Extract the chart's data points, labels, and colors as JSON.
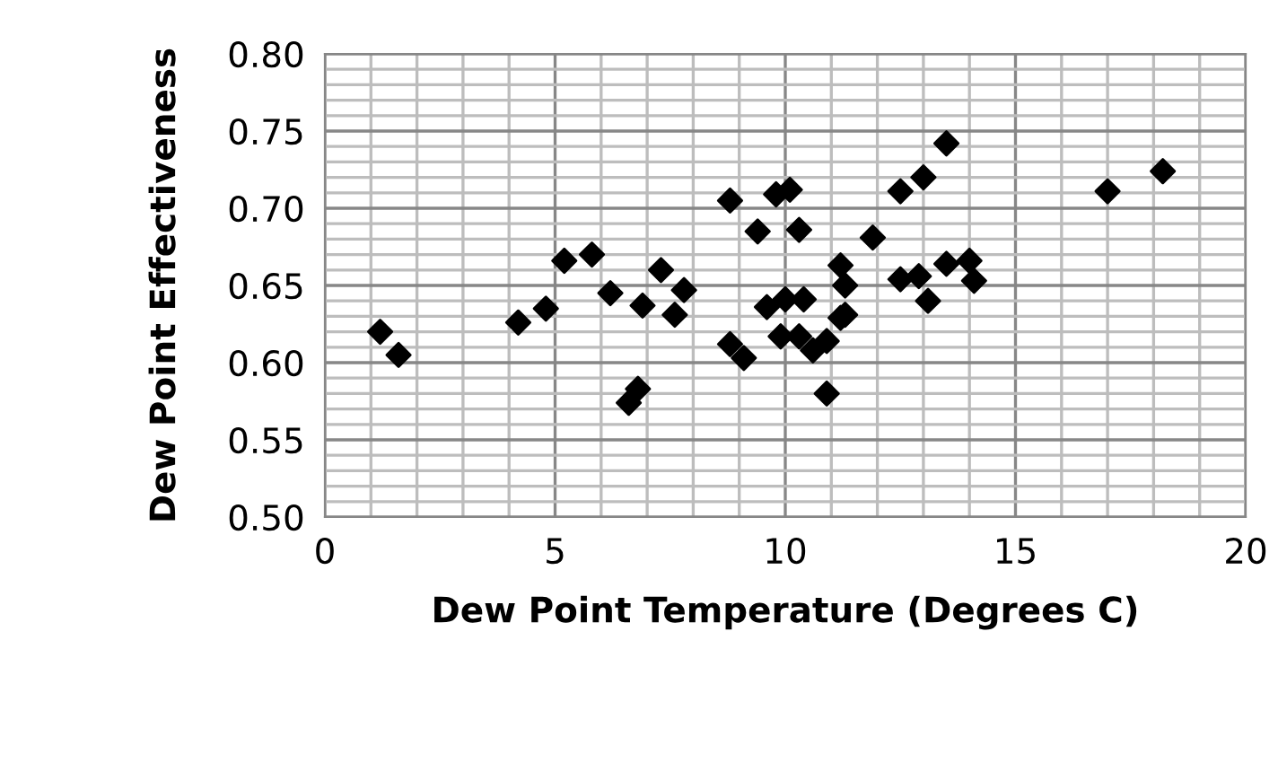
{
  "chart_data": {
    "type": "scatter",
    "xlabel": "Dew Point Temperature (Degrees C)",
    "ylabel": "Dew Point Effectiveness",
    "xlim": [
      0,
      20
    ],
    "xticks": [
      0,
      5,
      10,
      15,
      20
    ],
    "ylim": [
      0.5,
      0.8
    ],
    "yticks": [
      {
        "value": 0.5,
        "label": "0.50"
      },
      {
        "value": 0.55,
        "label": "0.55"
      },
      {
        "value": 0.6,
        "label": "0.60"
      },
      {
        "value": 0.65,
        "label": "0.65"
      },
      {
        "value": 0.7,
        "label": "0.70"
      },
      {
        "value": 0.75,
        "label": "0.75"
      },
      {
        "value": 0.8,
        "label": "0.80"
      }
    ],
    "grid": true,
    "marker": "diamond",
    "series": [
      {
        "color": "#000000",
        "x": [
          1.2,
          1.6,
          4.2,
          4.8,
          5.2,
          5.8,
          6.2,
          6.6,
          6.8,
          6.9,
          7.3,
          7.6,
          7.8,
          8.8,
          8.8,
          9.1,
          9.4,
          9.6,
          9.8,
          9.9,
          10.0,
          10.1,
          10.3,
          10.3,
          10.4,
          10.6,
          10.9,
          10.9,
          11.2,
          11.2,
          11.3,
          11.3,
          11.9,
          12.5,
          12.5,
          12.9,
          13.0,
          13.1,
          13.5,
          13.5,
          14.0,
          14.1,
          17.0,
          18.2
        ],
        "values": [
          0.62,
          0.605,
          0.626,
          0.635,
          0.666,
          0.67,
          0.645,
          0.574,
          0.583,
          0.637,
          0.66,
          0.631,
          0.647,
          0.705,
          0.612,
          0.603,
          0.685,
          0.636,
          0.709,
          0.617,
          0.641,
          0.712,
          0.686,
          0.617,
          0.641,
          0.608,
          0.58,
          0.614,
          0.663,
          0.629,
          0.65,
          0.631,
          0.681,
          0.711,
          0.654,
          0.656,
          0.72,
          0.64,
          0.742,
          0.664,
          0.666,
          0.653,
          0.711,
          0.724
        ]
      }
    ]
  }
}
